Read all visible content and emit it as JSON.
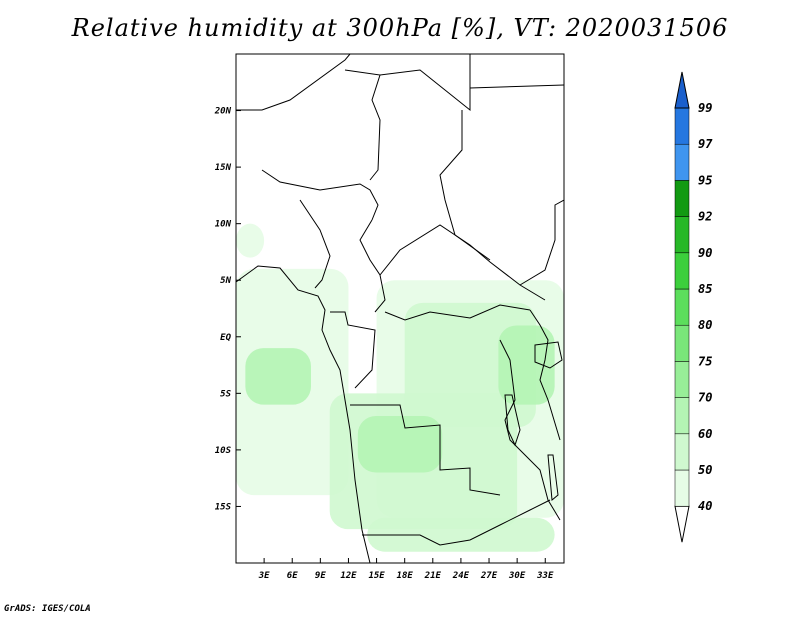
{
  "title": "Relative humidity at 300hPa [%], VT: 2020031506",
  "credit": "GrADS: IGES/COLA",
  "map": {
    "lon_range": [
      0,
      35
    ],
    "lat_range": [
      -20,
      25
    ],
    "lon_ticks": [
      {
        "value": 3,
        "label": "3E"
      },
      {
        "value": 6,
        "label": "6E"
      },
      {
        "value": 9,
        "label": "9E"
      },
      {
        "value": 12,
        "label": "12E"
      },
      {
        "value": 15,
        "label": "15E"
      },
      {
        "value": 18,
        "label": "18E"
      },
      {
        "value": 21,
        "label": "21E"
      },
      {
        "value": 24,
        "label": "24E"
      },
      {
        "value": 27,
        "label": "27E"
      },
      {
        "value": 30,
        "label": "30E"
      },
      {
        "value": 33,
        "label": "33E"
      }
    ],
    "lat_ticks": [
      {
        "value": 20,
        "label": "20N"
      },
      {
        "value": 15,
        "label": "15N"
      },
      {
        "value": 10,
        "label": "10N"
      },
      {
        "value": 5,
        "label": "5N"
      },
      {
        "value": 0,
        "label": "EQ"
      },
      {
        "value": -5,
        "label": "5S"
      },
      {
        "value": -10,
        "label": "10S"
      },
      {
        "value": -15,
        "label": "15S"
      }
    ]
  },
  "colorbar": {
    "levels": [
      "40",
      "50",
      "60",
      "70",
      "75",
      "80",
      "85",
      "90",
      "92",
      "95",
      "97",
      "99"
    ],
    "colors": [
      "#ffffff",
      "#e6fce6",
      "#cff8cf",
      "#b4f4b4",
      "#98ee98",
      "#7ae67a",
      "#5cde5c",
      "#3ccf3c",
      "#27b827",
      "#129a12",
      "#3f95ef",
      "#2577e0",
      "#1a5fcc"
    ]
  },
  "humid_areas": [
    {
      "name": "west-coast-band",
      "level": 1,
      "lon": [
        0,
        12
      ],
      "lat": [
        -14,
        6
      ]
    },
    {
      "name": "congo-basin",
      "level": 1,
      "lon": [
        15,
        35
      ],
      "lat": [
        -16,
        5
      ]
    },
    {
      "name": "angola-zambia",
      "level": 2,
      "lon": [
        10,
        30
      ],
      "lat": [
        -17,
        -5
      ]
    },
    {
      "name": "southern-strip",
      "level": 2,
      "lon": [
        14,
        34
      ],
      "lat": [
        -19,
        -16
      ]
    },
    {
      "name": "central-core",
      "level": 2,
      "lon": [
        18,
        32
      ],
      "lat": [
        -8,
        3
      ]
    },
    {
      "name": "east-lakes",
      "level": 3,
      "lon": [
        28,
        34
      ],
      "lat": [
        -6,
        1
      ]
    },
    {
      "name": "kasai",
      "level": 3,
      "lon": [
        13,
        22
      ],
      "lat": [
        -12,
        -7
      ]
    },
    {
      "name": "coastal-gabon",
      "level": 3,
      "lon": [
        1,
        8
      ],
      "lat": [
        -6,
        -1
      ]
    },
    {
      "name": "northwest-patch",
      "level": 1,
      "lon": [
        0,
        3
      ],
      "lat": [
        7,
        10
      ]
    }
  ]
}
